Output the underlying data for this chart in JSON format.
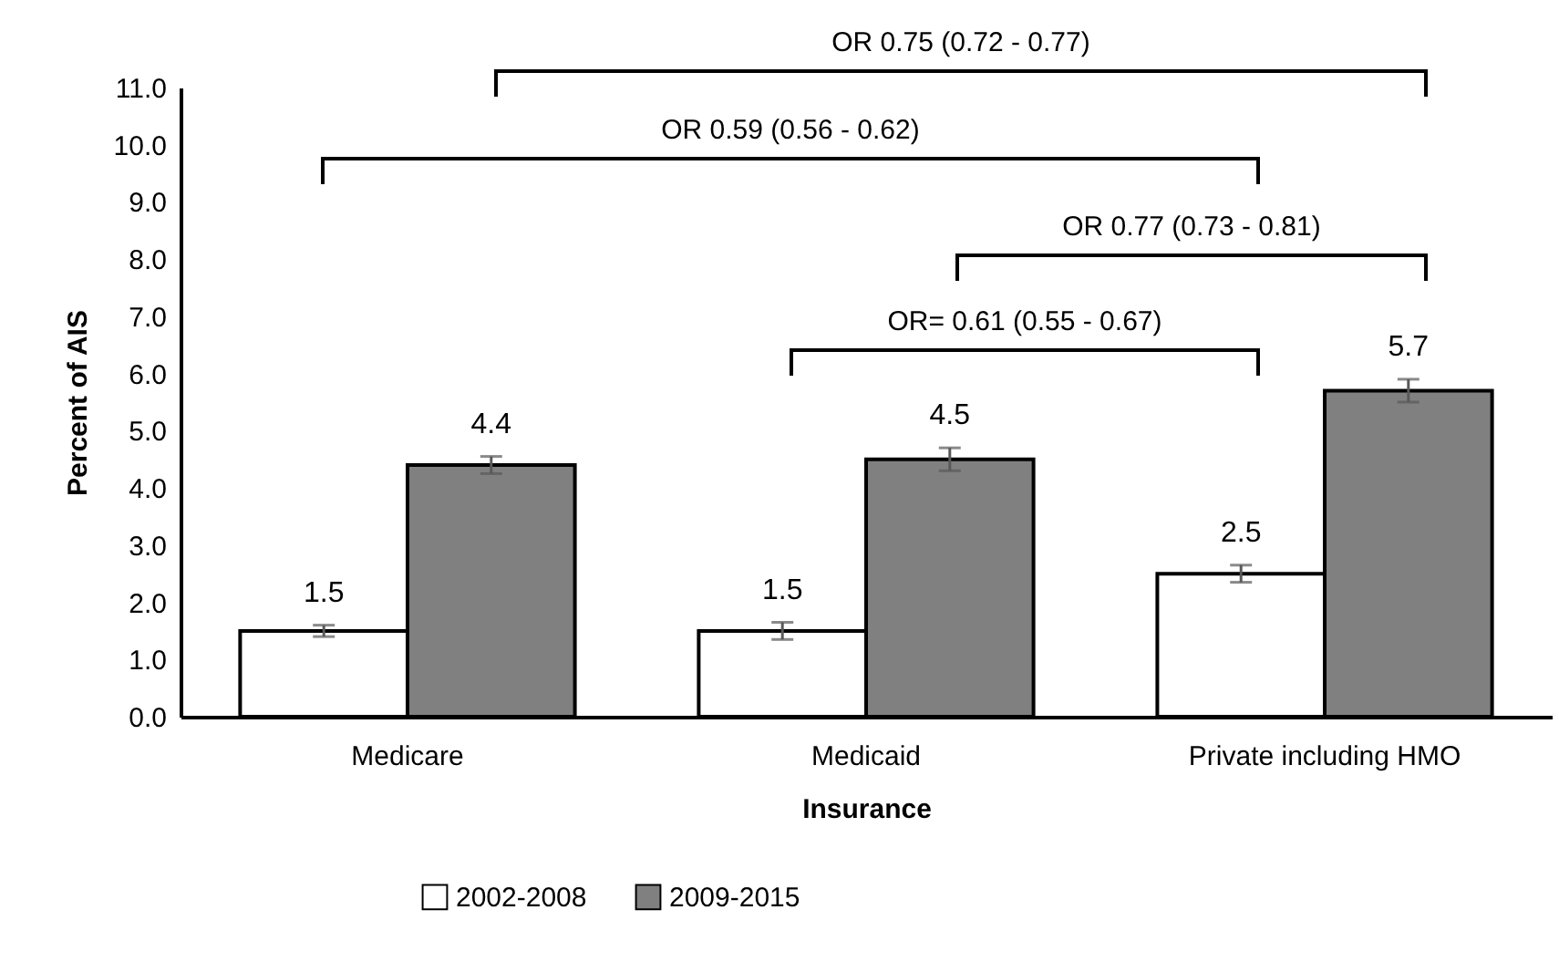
{
  "chart_data": {
    "type": "bar",
    "xlabel": "Insurance",
    "ylabel": "Percent of AIS",
    "categories": [
      "Medicare",
      "Medicaid",
      "Private including HMO"
    ],
    "series": [
      {
        "name": "2002-2008",
        "color": "#ffffff",
        "values": [
          1.5,
          1.5,
          2.5
        ],
        "errors": [
          0.1,
          0.15,
          0.15
        ]
      },
      {
        "name": "2009-2015",
        "color": "#808080",
        "values": [
          4.4,
          4.5,
          5.7
        ],
        "errors": [
          0.15,
          0.2,
          0.2
        ]
      }
    ],
    "ylim": [
      0,
      11
    ],
    "yticks": [
      {
        "value": 0,
        "label": "0.0"
      },
      {
        "value": 1,
        "label": "1.0"
      },
      {
        "value": 2,
        "label": "2.0"
      },
      {
        "value": 3,
        "label": "3.0"
      },
      {
        "value": 4,
        "label": "4.0"
      },
      {
        "value": 5,
        "label": "5.0"
      },
      {
        "value": 6,
        "label": "6.0"
      },
      {
        "value": 7,
        "label": "7.0"
      },
      {
        "value": 8,
        "label": "8.0"
      },
      {
        "value": 9,
        "label": "9.0"
      },
      {
        "value": 10,
        "label": "10.0"
      },
      {
        "value": 11,
        "label": "11.0"
      }
    ],
    "annotations": [
      "OR 0.75 (0.72 - 0.77)",
      "OR 0.59 (0.56 - 0.62)",
      "OR 0.77 (0.73 - 0.81)",
      "OR= 0.61 (0.55 - 0.67)"
    ],
    "data_labels": true,
    "grid": false,
    "legend": "bottom"
  }
}
